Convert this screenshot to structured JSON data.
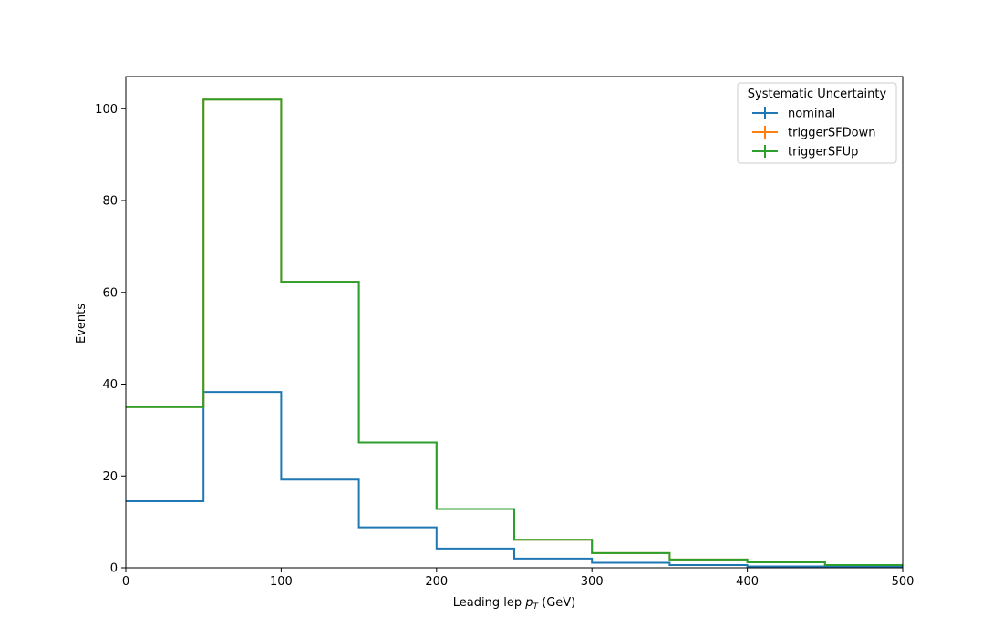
{
  "chart_data": {
    "type": "step",
    "xlabel_main": "Leading lep ",
    "xlabel_var": "p",
    "xlabel_sub": "T",
    "xlabel_unit": " (GeV)",
    "ylabel": "Events",
    "xlim": [
      0,
      500
    ],
    "ylim": [
      0,
      107
    ],
    "xticks": [
      0,
      100,
      200,
      300,
      400,
      500
    ],
    "yticks": [
      0,
      20,
      40,
      60,
      80,
      100
    ],
    "bin_edges": [
      0,
      50,
      100,
      150,
      200,
      250,
      300,
      350,
      400,
      450,
      500
    ],
    "series": [
      {
        "name": "nominal",
        "color": "#1f77b4",
        "values": [
          14.5,
          38.3,
          19.2,
          8.8,
          4.2,
          2.0,
          1.1,
          0.6,
          0.3,
          0.2
        ]
      },
      {
        "name": "triggerSFDown",
        "color": "#ff7f0e",
        "values": [
          35.0,
          102.0,
          62.3,
          27.3,
          12.8,
          6.1,
          3.2,
          1.8,
          1.2,
          0.6
        ]
      },
      {
        "name": "triggerSFUp",
        "color": "#2ca02c",
        "values": [
          35.0,
          102.0,
          62.3,
          27.3,
          12.8,
          6.1,
          3.2,
          1.8,
          1.2,
          0.6
        ]
      }
    ],
    "legend": {
      "title": "Systematic Uncertainty",
      "placement": "top-right"
    },
    "grid": false
  }
}
